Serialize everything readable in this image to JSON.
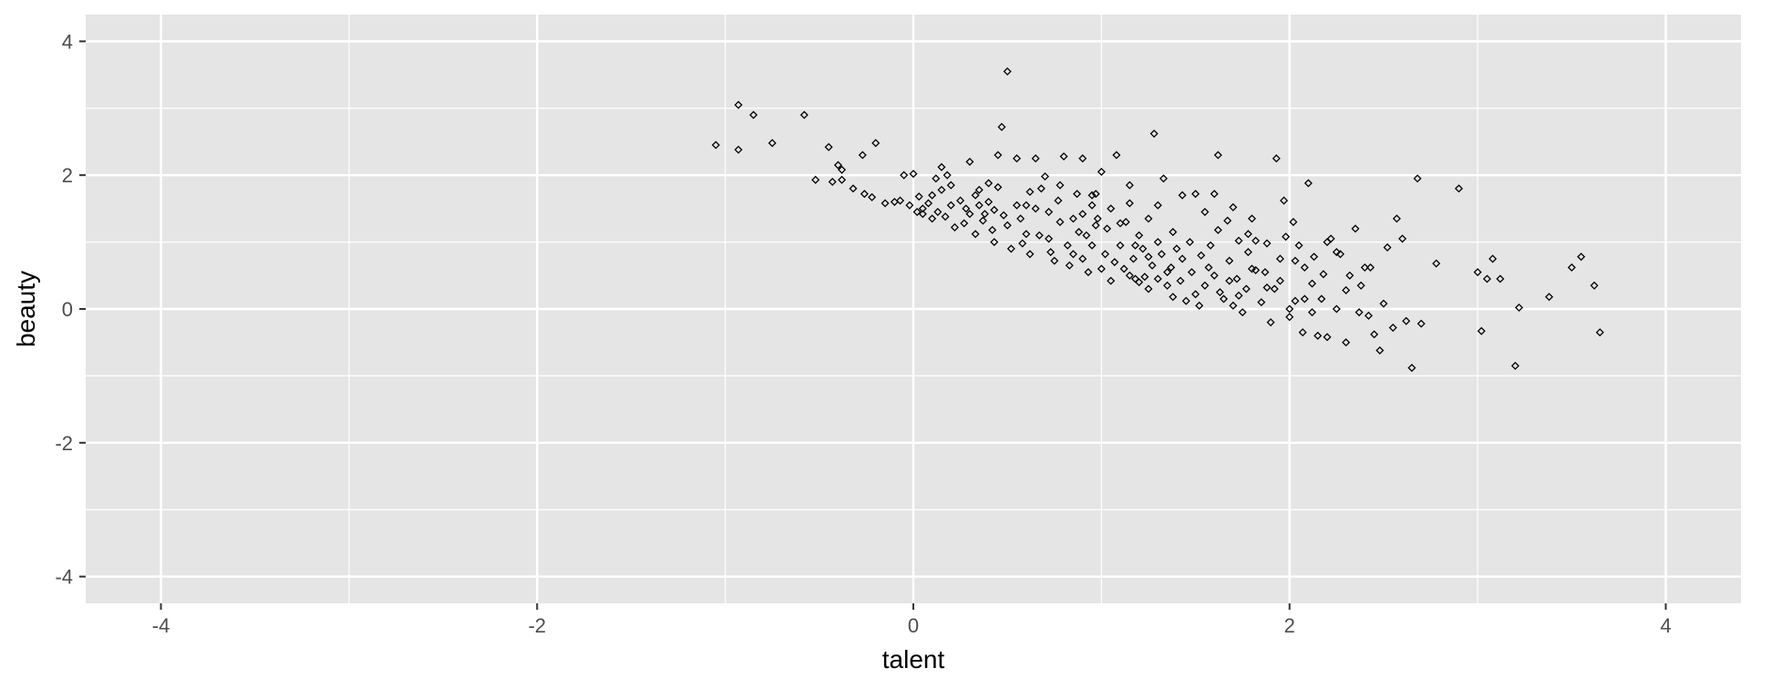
{
  "chart_data": {
    "type": "scatter",
    "title": "",
    "xlabel": "talent",
    "ylabel": "beauty",
    "xlim": [
      -4.4,
      4.4
    ],
    "ylim": [
      -4.4,
      4.4
    ],
    "xticks": [
      -4,
      -2,
      0,
      2,
      4
    ],
    "yticks": [
      -4,
      -2,
      0,
      2,
      4
    ],
    "grid": true,
    "colors": {
      "panel": "#e5e5e5",
      "grid": "#ffffff",
      "point": "#000000",
      "tick_label": "#4d4d4d",
      "tick": "#333333"
    },
    "series": [
      {
        "marker": "hollow-diamond",
        "points": [
          [
            -1.05,
            2.45
          ],
          [
            -0.93,
            3.05
          ],
          [
            -0.93,
            2.38
          ],
          [
            -0.85,
            2.9
          ],
          [
            -0.75,
            2.48
          ],
          [
            -0.58,
            2.9
          ],
          [
            -0.52,
            1.93
          ],
          [
            -0.45,
            2.42
          ],
          [
            -0.43,
            1.9
          ],
          [
            -0.4,
            2.15
          ],
          [
            -0.38,
            2.08
          ],
          [
            -0.38,
            1.93
          ],
          [
            -0.32,
            1.8
          ],
          [
            -0.27,
            2.3
          ],
          [
            -0.26,
            1.72
          ],
          [
            -0.22,
            1.67
          ],
          [
            -0.2,
            2.48
          ],
          [
            -0.15,
            1.58
          ],
          [
            -0.1,
            1.6
          ],
          [
            -0.07,
            1.62
          ],
          [
            -0.05,
            2.0
          ],
          [
            -0.02,
            1.55
          ],
          [
            0.0,
            2.02
          ],
          [
            0.02,
            1.45
          ],
          [
            0.03,
            1.68
          ],
          [
            0.05,
            1.5
          ],
          [
            0.08,
            1.58
          ],
          [
            0.1,
            1.7
          ],
          [
            0.1,
            1.35
          ],
          [
            0.13,
            1.45
          ],
          [
            0.15,
            2.12
          ],
          [
            0.15,
            1.78
          ],
          [
            0.17,
            1.38
          ],
          [
            0.18,
            2.0
          ],
          [
            0.2,
            1.55
          ],
          [
            0.22,
            1.22
          ],
          [
            0.25,
            1.62
          ],
          [
            0.27,
            1.28
          ],
          [
            0.3,
            1.42
          ],
          [
            0.3,
            2.2
          ],
          [
            0.33,
            1.12
          ],
          [
            0.33,
            1.7
          ],
          [
            0.35,
            1.55
          ],
          [
            0.37,
            1.32
          ],
          [
            0.38,
            1.42
          ],
          [
            0.4,
            1.88
          ],
          [
            0.4,
            1.6
          ],
          [
            0.42,
            1.18
          ],
          [
            0.43,
            1.0
          ],
          [
            0.45,
            2.3
          ],
          [
            0.45,
            1.82
          ],
          [
            0.47,
            2.72
          ],
          [
            0.48,
            1.4
          ],
          [
            0.5,
            3.55
          ],
          [
            0.5,
            1.25
          ],
          [
            0.52,
            0.9
          ],
          [
            0.55,
            2.25
          ],
          [
            0.55,
            1.55
          ],
          [
            0.57,
            1.35
          ],
          [
            0.6,
            1.12
          ],
          [
            0.62,
            1.75
          ],
          [
            0.62,
            0.82
          ],
          [
            0.65,
            1.5
          ],
          [
            0.65,
            2.25
          ],
          [
            0.68,
            1.8
          ],
          [
            0.7,
            1.98
          ],
          [
            0.72,
            1.45
          ],
          [
            0.72,
            1.05
          ],
          [
            0.75,
            0.72
          ],
          [
            0.77,
            1.62
          ],
          [
            0.78,
            1.3
          ],
          [
            0.8,
            2.28
          ],
          [
            0.82,
            0.95
          ],
          [
            0.83,
            0.65
          ],
          [
            0.85,
            1.35
          ],
          [
            0.87,
            1.72
          ],
          [
            0.88,
            1.15
          ],
          [
            0.9,
            2.25
          ],
          [
            0.9,
            0.75
          ],
          [
            0.92,
            1.1
          ],
          [
            0.93,
            0.55
          ],
          [
            0.95,
            1.55
          ],
          [
            0.95,
            0.95
          ],
          [
            0.97,
            1.72
          ],
          [
            0.98,
            1.35
          ],
          [
            1.0,
            2.05
          ],
          [
            1.0,
            0.6
          ],
          [
            1.02,
            0.82
          ],
          [
            1.03,
            1.2
          ],
          [
            1.05,
            0.42
          ],
          [
            1.05,
            1.5
          ],
          [
            1.07,
            0.7
          ],
          [
            1.08,
            2.3
          ],
          [
            1.1,
            0.95
          ],
          [
            1.12,
            0.6
          ],
          [
            1.13,
            1.3
          ],
          [
            1.15,
            0.5
          ],
          [
            1.15,
            1.58
          ],
          [
            1.17,
            0.75
          ],
          [
            1.18,
            0.45
          ],
          [
            1.2,
            1.1
          ],
          [
            1.2,
            0.4
          ],
          [
            1.22,
            0.9
          ],
          [
            1.23,
            0.48
          ],
          [
            1.25,
            0.3
          ],
          [
            1.25,
            1.35
          ],
          [
            1.27,
            0.65
          ],
          [
            1.28,
            2.62
          ],
          [
            1.3,
            0.45
          ],
          [
            1.3,
            1.0
          ],
          [
            1.32,
            0.82
          ],
          [
            1.33,
            1.95
          ],
          [
            1.35,
            0.35
          ],
          [
            1.37,
            0.62
          ],
          [
            1.38,
            1.15
          ],
          [
            1.4,
            0.9
          ],
          [
            1.42,
            0.42
          ],
          [
            1.43,
            0.75
          ],
          [
            1.45,
            0.12
          ],
          [
            1.47,
            1.0
          ],
          [
            1.48,
            0.55
          ],
          [
            1.5,
            1.72
          ],
          [
            1.5,
            0.22
          ],
          [
            1.52,
            0.05
          ],
          [
            1.53,
            0.8
          ],
          [
            1.55,
            0.35
          ],
          [
            1.57,
            0.62
          ],
          [
            1.58,
            0.95
          ],
          [
            1.6,
            0.5
          ],
          [
            1.6,
            1.72
          ],
          [
            1.62,
            2.3
          ],
          [
            1.63,
            0.25
          ],
          [
            1.65,
            0.15
          ],
          [
            1.67,
            1.32
          ],
          [
            1.68,
            0.72
          ],
          [
            1.7,
            1.52
          ],
          [
            1.7,
            0.05
          ],
          [
            1.72,
            0.45
          ],
          [
            1.73,
            1.02
          ],
          [
            1.75,
            -0.05
          ],
          [
            1.77,
            0.3
          ],
          [
            1.78,
            0.85
          ],
          [
            1.8,
            1.35
          ],
          [
            1.8,
            0.6
          ],
          [
            1.82,
            1.02
          ],
          [
            1.85,
            0.1
          ],
          [
            1.87,
            0.55
          ],
          [
            1.88,
            0.98
          ],
          [
            1.9,
            -0.2
          ],
          [
            1.92,
            0.3
          ],
          [
            1.93,
            2.25
          ],
          [
            1.95,
            0.75
          ],
          [
            1.97,
            1.62
          ],
          [
            1.98,
            1.08
          ],
          [
            2.0,
            0.0
          ],
          [
            2.02,
            1.3
          ],
          [
            2.03,
            0.12
          ],
          [
            2.05,
            0.95
          ],
          [
            2.07,
            -0.35
          ],
          [
            2.08,
            0.62
          ],
          [
            2.1,
            1.88
          ],
          [
            2.12,
            0.38
          ],
          [
            2.13,
            0.78
          ],
          [
            2.15,
            -0.4
          ],
          [
            2.17,
            0.15
          ],
          [
            2.18,
            0.52
          ],
          [
            2.2,
            -0.42
          ],
          [
            2.22,
            1.05
          ],
          [
            2.25,
            0.0
          ],
          [
            2.27,
            0.82
          ],
          [
            2.3,
            -0.5
          ],
          [
            2.32,
            0.5
          ],
          [
            2.35,
            1.2
          ],
          [
            2.37,
            -0.05
          ],
          [
            2.4,
            0.62
          ],
          [
            2.43,
            0.62
          ],
          [
            2.45,
            -0.38
          ],
          [
            2.48,
            -0.62
          ],
          [
            2.5,
            0.08
          ],
          [
            2.52,
            0.92
          ],
          [
            2.55,
            -0.28
          ],
          [
            2.57,
            1.35
          ],
          [
            2.6,
            1.05
          ],
          [
            2.62,
            -0.18
          ],
          [
            2.65,
            -0.88
          ],
          [
            2.68,
            1.95
          ],
          [
            2.7,
            -0.22
          ],
          [
            2.78,
            0.68
          ],
          [
            2.9,
            1.8
          ],
          [
            3.0,
            0.55
          ],
          [
            3.02,
            -0.33
          ],
          [
            3.05,
            0.45
          ],
          [
            3.08,
            0.75
          ],
          [
            3.12,
            0.45
          ],
          [
            3.2,
            -0.85
          ],
          [
            3.22,
            0.02
          ],
          [
            3.38,
            0.18
          ],
          [
            3.5,
            0.62
          ],
          [
            3.55,
            0.78
          ],
          [
            3.62,
            0.35
          ],
          [
            3.65,
            -0.35
          ],
          [
            0.05,
            1.42
          ],
          [
            0.12,
            1.95
          ],
          [
            0.2,
            1.85
          ],
          [
            0.28,
            1.5
          ],
          [
            0.35,
            1.78
          ],
          [
            0.43,
            1.48
          ],
          [
            0.58,
            0.98
          ],
          [
            0.67,
            1.1
          ],
          [
            0.73,
            0.85
          ],
          [
            0.85,
            0.82
          ],
          [
            0.9,
            1.42
          ],
          [
            0.97,
            1.25
          ],
          [
            1.1,
            1.28
          ],
          [
            1.18,
            0.95
          ],
          [
            1.25,
            0.78
          ],
          [
            1.35,
            0.55
          ],
          [
            1.43,
            1.7
          ],
          [
            1.55,
            1.45
          ],
          [
            1.62,
            1.18
          ],
          [
            1.68,
            0.42
          ],
          [
            1.73,
            0.2
          ],
          [
            1.78,
            1.12
          ],
          [
            1.82,
            0.58
          ],
          [
            1.88,
            0.32
          ],
          [
            1.95,
            0.42
          ],
          [
            2.0,
            -0.12
          ],
          [
            2.03,
            0.72
          ],
          [
            2.08,
            0.15
          ],
          [
            2.12,
            -0.05
          ],
          [
            2.2,
            1.0
          ],
          [
            2.25,
            0.85
          ],
          [
            2.3,
            0.28
          ],
          [
            2.38,
            0.35
          ],
          [
            2.42,
            -0.1
          ],
          [
            0.6,
            1.55
          ],
          [
            0.78,
            1.85
          ],
          [
            0.95,
            1.7
          ],
          [
            1.15,
            1.85
          ],
          [
            1.3,
            1.55
          ],
          [
            1.38,
            0.18
          ]
        ]
      }
    ]
  }
}
